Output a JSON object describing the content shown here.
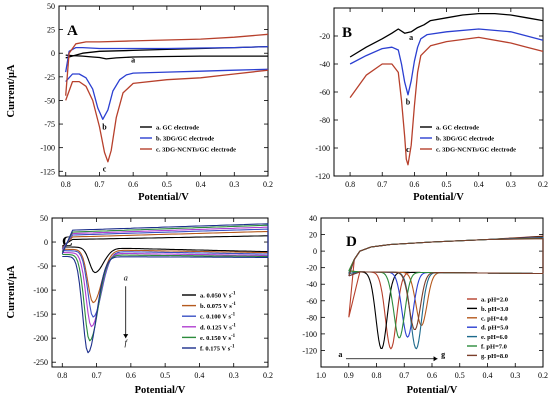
{
  "chart_data": [
    {
      "id": "A",
      "type": "line",
      "panel_label": "A",
      "xlabel": "Potential/V",
      "ylabel": "Current/μA",
      "xlim": [
        0.82,
        0.2
      ],
      "ylim": [
        -130,
        50
      ],
      "xticks": [
        0.8,
        0.7,
        0.6,
        0.5,
        0.4,
        0.3,
        0.2
      ],
      "xtick_labels": [
        "0.8",
        "0.7",
        "0.6",
        "0.5",
        "0.4",
        "0.3",
        "0.2"
      ],
      "yticks": [
        50,
        25,
        0,
        -25,
        -50,
        -75,
        -100,
        -125
      ],
      "ytick_labels": [
        "50",
        "25",
        "0",
        "-25",
        "-50",
        "-75",
        "-100",
        "-125"
      ],
      "legend_position": "lower-right",
      "series": [
        {
          "name": "a. GC electrode",
          "color": "#000000",
          "x": [
            0.8,
            0.78,
            0.75,
            0.72,
            0.7,
            0.68,
            0.65,
            0.6,
            0.5,
            0.4,
            0.3,
            0.2
          ],
          "y": [
            -2,
            -2.5,
            -3,
            -4,
            -4.5,
            -6,
            -5,
            -4,
            -3.5,
            -3,
            -3,
            -3
          ]
        },
        {
          "name": "",
          "color": "#000000",
          "x": [
            0.8,
            0.75,
            0.7,
            0.6,
            0.5,
            0.4,
            0.3,
            0.2
          ],
          "y": [
            -5,
            0,
            2,
            3,
            4,
            5,
            6,
            7
          ]
        },
        {
          "name": "b. 3DG/GC electrode",
          "color": "#2b3fd1",
          "x": [
            0.8,
            0.78,
            0.76,
            0.74,
            0.72,
            0.705,
            0.69,
            0.675,
            0.66,
            0.64,
            0.62,
            0.6,
            0.5,
            0.4,
            0.3,
            0.2
          ],
          "y": [
            -30,
            -22,
            -22,
            -26,
            -38,
            -58,
            -70,
            -60,
            -40,
            -28,
            -23,
            -21,
            -20,
            -19,
            -18,
            -17
          ]
        },
        {
          "name": "",
          "color": "#2b3fd1",
          "x": [
            0.8,
            0.79,
            0.77,
            0.75,
            0.7,
            0.6,
            0.5,
            0.4,
            0.3,
            0.2
          ],
          "y": [
            -20,
            2,
            6,
            6,
            5,
            5,
            5,
            5.5,
            6,
            7
          ]
        },
        {
          "name": "c. 3DG-NCNTs/GC electrode",
          "color": "#b7402c",
          "x": [
            0.8,
            0.78,
            0.76,
            0.74,
            0.72,
            0.7,
            0.685,
            0.675,
            0.665,
            0.65,
            0.63,
            0.6,
            0.5,
            0.4,
            0.3,
            0.2
          ],
          "y": [
            -50,
            -30,
            -30,
            -35,
            -50,
            -78,
            -105,
            -115,
            -103,
            -68,
            -42,
            -32,
            -28,
            -26,
            -22,
            -18
          ]
        },
        {
          "name": "",
          "color": "#b7402c",
          "x": [
            0.8,
            0.79,
            0.77,
            0.74,
            0.7,
            0.6,
            0.5,
            0.4,
            0.3,
            0.2
          ],
          "y": [
            -45,
            0,
            10,
            12,
            12,
            13,
            14,
            15,
            17,
            20
          ]
        }
      ],
      "annotations": [
        {
          "text": "a",
          "x": 0.6,
          "y": -10
        },
        {
          "text": "b",
          "x": 0.685,
          "y": -81
        },
        {
          "text": "c",
          "x": 0.685,
          "y": -125
        }
      ]
    },
    {
      "id": "B",
      "type": "line",
      "panel_label": "B",
      "xlabel": "Potential/V",
      "ylabel": "",
      "xlim": [
        0.85,
        0.2
      ],
      "ylim": [
        -120,
        0
      ],
      "xticks": [
        0.8,
        0.7,
        0.6,
        0.5,
        0.4,
        0.3,
        0.2
      ],
      "xtick_labels": [
        "0.8",
        "0.7",
        "0.6",
        "0.5",
        "0.4",
        "0.3",
        "0.2"
      ],
      "yticks": [
        -20,
        -40,
        -60,
        -80,
        -100,
        -120
      ],
      "ytick_labels": [
        "-20",
        "-40",
        "-60",
        "-80",
        "-100",
        "-120"
      ],
      "legend_position": "lower-right",
      "series": [
        {
          "name": "a. GC electrode",
          "color": "#000000",
          "x": [
            0.8,
            0.75,
            0.7,
            0.67,
            0.65,
            0.63,
            0.61,
            0.59,
            0.57,
            0.55,
            0.5,
            0.45,
            0.4,
            0.35,
            0.3,
            0.25,
            0.2
          ],
          "y": [
            -35,
            -28,
            -22,
            -18,
            -15,
            -18,
            -17,
            -14,
            -12,
            -9,
            -7,
            -5,
            -4,
            -4,
            -5,
            -7,
            -9
          ]
        },
        {
          "name": "b. 3DG/GC electrode",
          "color": "#2b3fd1",
          "x": [
            0.8,
            0.75,
            0.7,
            0.67,
            0.65,
            0.64,
            0.63,
            0.62,
            0.61,
            0.6,
            0.59,
            0.58,
            0.56,
            0.5,
            0.4,
            0.3,
            0.25,
            0.2
          ],
          "y": [
            -40,
            -34,
            -29,
            -28,
            -30,
            -40,
            -53,
            -62,
            -52,
            -38,
            -28,
            -22,
            -19,
            -17,
            -15,
            -17,
            -20,
            -23
          ]
        },
        {
          "name": "c. 3DG-NCNTs/GC electrode",
          "color": "#b7402c",
          "x": [
            0.8,
            0.75,
            0.7,
            0.67,
            0.65,
            0.64,
            0.63,
            0.625,
            0.62,
            0.61,
            0.6,
            0.59,
            0.58,
            0.55,
            0.5,
            0.4,
            0.3,
            0.25,
            0.2
          ],
          "y": [
            -64,
            -48,
            -40,
            -40,
            -46,
            -66,
            -92,
            -108,
            -112,
            -98,
            -70,
            -46,
            -34,
            -27,
            -24,
            -21,
            -25,
            -28,
            -31
          ]
        }
      ],
      "annotations": [
        {
          "text": "a",
          "x": 0.61,
          "y": -23
        },
        {
          "text": "b",
          "x": 0.62,
          "y": -69
        },
        {
          "text": "c",
          "x": 0.62,
          "y": -103
        }
      ]
    },
    {
      "id": "C",
      "type": "line",
      "panel_label": "C",
      "xlabel": "Potential/V",
      "ylabel": "Current/μA",
      "xlim": [
        0.83,
        0.2
      ],
      "ylim": [
        -260,
        50
      ],
      "xticks": [
        0.8,
        0.7,
        0.6,
        0.5,
        0.4,
        0.3,
        0.2
      ],
      "xtick_labels": [
        "0.8",
        "0.7",
        "0.6",
        "0.5",
        "0.4",
        "0.3",
        "0.2"
      ],
      "yticks": [
        50,
        0,
        -50,
        -100,
        -150,
        -200,
        -250
      ],
      "ytick_labels": [
        "50",
        "0",
        "-50",
        "-100",
        "-150",
        "-200",
        "-250"
      ],
      "legend_position": "right",
      "series": [
        {
          "name": "a. 0.050 V s",
          "color": "#000000",
          "peak_x": 0.705,
          "peak_y": -62,
          "top_start": 5,
          "top_end": 13,
          "bottom_base": -10,
          "bottom_end": -20
        },
        {
          "name": "b. 0.075 V s",
          "color": "#b55a1e",
          "peak_x": 0.71,
          "peak_y": -125,
          "top_start": 10,
          "top_end": 22,
          "bottom_base": -15,
          "bottom_end": -22
        },
        {
          "name": "c. 0.100 V s",
          "color": "#3b52c4",
          "peak_x": 0.71,
          "peak_y": -155,
          "top_start": 14,
          "top_end": 27,
          "bottom_base": -18,
          "bottom_end": -25
        },
        {
          "name": "d. 0.125 V s",
          "color": "#b040d0",
          "peak_x": 0.715,
          "peak_y": -175,
          "top_start": 17,
          "top_end": 31,
          "bottom_base": -22,
          "bottom_end": -28
        },
        {
          "name": "e. 0.150 V s",
          "color": "#2c8c3c",
          "peak_x": 0.72,
          "peak_y": -205,
          "top_start": 20,
          "top_end": 35,
          "bottom_base": -26,
          "bottom_end": -30
        },
        {
          "name": "f. 0.175 V s",
          "color": "#1d2f8c",
          "peak_x": 0.725,
          "peak_y": -230,
          "top_start": 24,
          "top_end": 38,
          "bottom_base": -30,
          "bottom_end": -32
        }
      ],
      "legend_superscript": "-1",
      "annotations": [
        {
          "text": "a",
          "x": 0.615,
          "y": -80,
          "style": "italic"
        },
        {
          "text": "f",
          "x": 0.615,
          "y": -215,
          "style": "italic"
        }
      ]
    },
    {
      "id": "D",
      "type": "line",
      "panel_label": "D",
      "xlabel": "Potential/V",
      "ylabel": "",
      "xlim": [
        1.0,
        0.2
      ],
      "ylim": [
        -140,
        40
      ],
      "xticks": [
        1.0,
        0.9,
        0.8,
        0.7,
        0.6,
        0.5,
        0.4,
        0.3,
        0.2
      ],
      "xtick_labels": [
        "1.0",
        "0.9",
        "0.8",
        "0.7",
        "0.6",
        "0.5",
        "0.4",
        "0.3",
        "0.2"
      ],
      "yticks": [
        40,
        20,
        0,
        -20,
        -40,
        -60,
        -80,
        -100,
        -120
      ],
      "ytick_labels": [
        "40",
        "20",
        "0",
        "-20",
        "-40",
        "-60",
        "-80",
        "-100",
        "-120"
      ],
      "legend_position": "right",
      "series": [
        {
          "name": "a. pH=2.0",
          "color": "#b7402c",
          "peak_x": 0.748,
          "peak_y": -118
        },
        {
          "name": "b. pH=3.0",
          "color": "#000000",
          "peak_x": 0.782,
          "peak_y": -118
        },
        {
          "name": "c. pH=4.0",
          "color": "#b55a1e",
          "peak_x": 0.638,
          "peak_y": -90
        },
        {
          "name": "d. pH=5.0",
          "color": "#2b3fd1",
          "peak_x": 0.688,
          "peak_y": -104
        },
        {
          "name": "e. pH=6.0",
          "color": "#1d6a8c",
          "peak_x": 0.657,
          "peak_y": -118
        },
        {
          "name": "f. pH=7.0",
          "color": "#2c8c3c",
          "peak_x": 0.718,
          "peak_y": -105
        },
        {
          "name": "g. pH=8.0",
          "color": "#7a3e2a",
          "peak_x": 0.662,
          "peak_y": -95
        }
      ],
      "annotations": [
        {
          "text": "a",
          "x": 0.93,
          "y": -128
        },
        {
          "text": "g",
          "x": 0.56,
          "y": -128
        }
      ]
    }
  ]
}
